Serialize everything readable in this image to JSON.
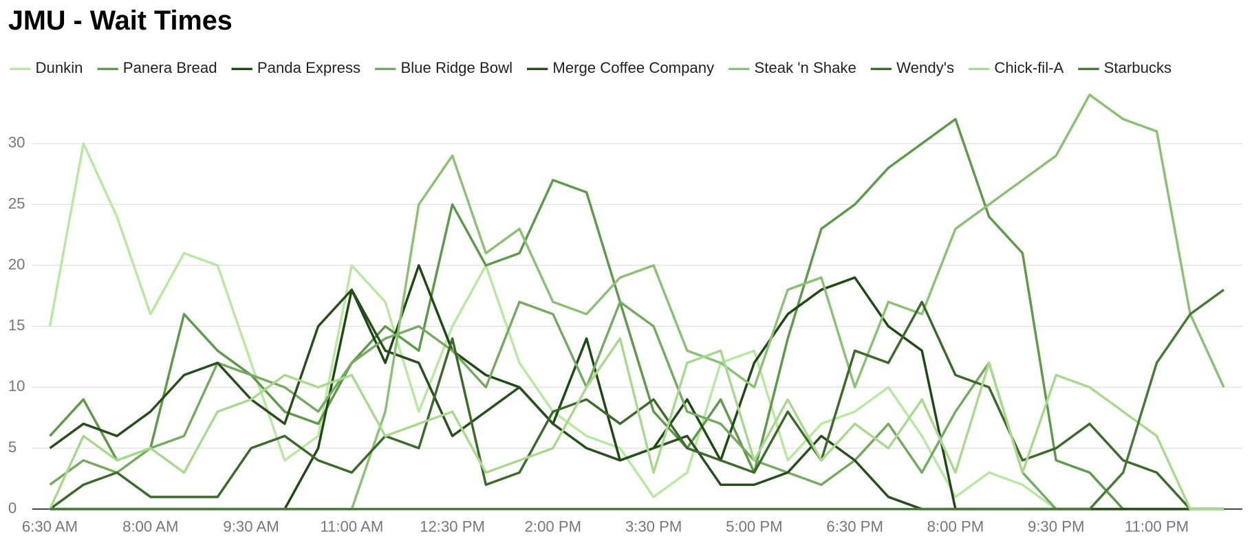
{
  "chart_data": {
    "type": "line",
    "title": "JMU - Wait Times",
    "categories": [
      "6:30 AM",
      null,
      null,
      "8:00 AM",
      null,
      null,
      "9:30 AM",
      null,
      null,
      "11:00 AM",
      null,
      null,
      "12:30 PM",
      null,
      null,
      "2:00 PM",
      null,
      null,
      "3:30 PM",
      null,
      null,
      "5:00 PM",
      null,
      null,
      "6:30 PM",
      null,
      null,
      "8:00 PM",
      null,
      null,
      "9:30 PM",
      null,
      null,
      "11:00 PM",
      null,
      null
    ],
    "series": [
      {
        "name": "Dunkin",
        "color": "#b9e8a2",
        "values": [
          15,
          30,
          24,
          16,
          21,
          20,
          12,
          4,
          6,
          20,
          17,
          8,
          15,
          20,
          12,
          8,
          6,
          5,
          1,
          3,
          12,
          13,
          4,
          7,
          8,
          10,
          6,
          1,
          3,
          2,
          0,
          0,
          0,
          0,
          0,
          0
        ]
      },
      {
        "name": "Panera Bread",
        "color": "#5f9a4c",
        "values": [
          6,
          9,
          4,
          5,
          16,
          13,
          11,
          8,
          7,
          12,
          15,
          13,
          25,
          20,
          21,
          27,
          26,
          17,
          8,
          5,
          9,
          3,
          14,
          23,
          25,
          28,
          30,
          32,
          24,
          21,
          4,
          3,
          0,
          0,
          0,
          0
        ]
      },
      {
        "name": "Panda Express",
        "color": "#1d4a12",
        "values": [
          0,
          0,
          0,
          0,
          0,
          0,
          0,
          0,
          5,
          18,
          12,
          20,
          13,
          11,
          10,
          7,
          14,
          4,
          5,
          9,
          4,
          12,
          16,
          18,
          19,
          15,
          13,
          0,
          0,
          0,
          0,
          0,
          0,
          0,
          0,
          0
        ]
      },
      {
        "name": "Blue Ridge Bowl",
        "color": "#76aa62",
        "values": [
          2,
          4,
          3,
          5,
          6,
          12,
          11,
          10,
          8,
          12,
          14,
          15,
          13,
          10,
          17,
          16,
          10,
          17,
          15,
          8,
          7,
          4,
          3,
          2,
          4,
          7,
          3,
          8,
          12,
          3,
          0,
          0,
          0,
          0,
          0,
          0
        ]
      },
      {
        "name": "Merge Coffee Company",
        "color": "#284f1b",
        "values": [
          5,
          7,
          6,
          8,
          11,
          12,
          9,
          7,
          15,
          18,
          13,
          12,
          6,
          8,
          10,
          7,
          5,
          4,
          5,
          6,
          2,
          2,
          3,
          6,
          4,
          1,
          0,
          0,
          0,
          0,
          0,
          0,
          0,
          0,
          0,
          0
        ]
      },
      {
        "name": "Steak 'n Shake",
        "color": "#8cc074",
        "values": [
          0,
          0,
          0,
          0,
          0,
          0,
          0,
          0,
          0,
          0,
          8,
          25,
          29,
          21,
          23,
          17,
          16,
          19,
          20,
          13,
          12,
          10,
          18,
          19,
          10,
          17,
          16,
          23,
          25,
          27,
          29,
          34,
          32,
          31,
          16,
          10
        ]
      },
      {
        "name": "Wendy's",
        "color": "#3b6a2b",
        "values": [
          0,
          2,
          3,
          1,
          1,
          1,
          5,
          6,
          4,
          3,
          6,
          5,
          14,
          2,
          3,
          8,
          9,
          7,
          9,
          5,
          4,
          3,
          8,
          4,
          13,
          12,
          17,
          11,
          10,
          4,
          5,
          7,
          4,
          3,
          0,
          0
        ]
      },
      {
        "name": "Chick-fil-A",
        "color": "#a9d98f",
        "values": [
          0,
          6,
          4,
          5,
          3,
          8,
          9,
          11,
          10,
          11,
          6,
          7,
          8,
          3,
          4,
          5,
          10,
          14,
          3,
          12,
          13,
          4,
          9,
          4,
          7,
          5,
          9,
          3,
          12,
          3,
          11,
          10,
          8,
          6,
          0,
          0
        ]
      },
      {
        "name": "Starbucks",
        "color": "#477937",
        "values": [
          0,
          0,
          0,
          0,
          0,
          0,
          0,
          0,
          0,
          0,
          0,
          0,
          0,
          0,
          0,
          0,
          0,
          0,
          0,
          0,
          0,
          0,
          0,
          0,
          0,
          0,
          0,
          0,
          0,
          0,
          0,
          0,
          3,
          12,
          16,
          18
        ]
      }
    ],
    "ylim": [
      0,
      35
    ],
    "yticks": [
      0,
      5,
      10,
      15,
      20,
      25,
      30
    ],
    "grid": true,
    "legend": "top"
  }
}
